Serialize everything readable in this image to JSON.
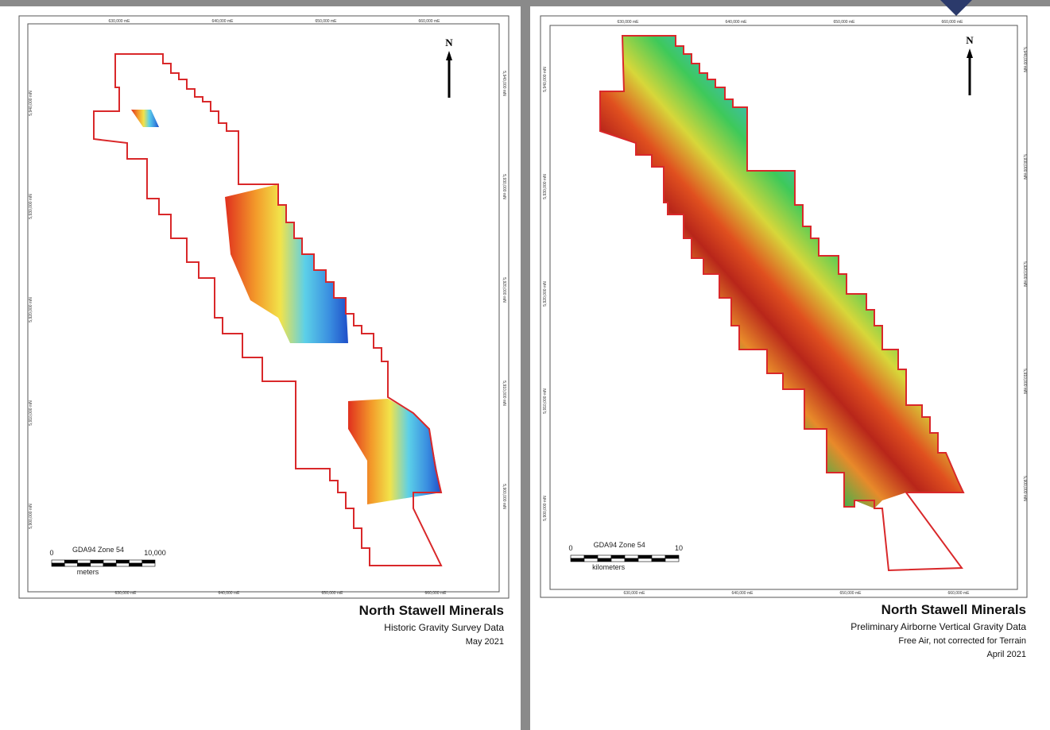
{
  "panels": [
    {
      "eastings": [
        "630,000 mE",
        "640,000 mE",
        "650,000 mE",
        "660,000 mE"
      ],
      "northings": [
        "5,940,000 mN",
        "5,930,000 mN",
        "5,920,000 mN",
        "5,910,000 mN",
        "5,900,000 mN"
      ],
      "north": "N",
      "scale": {
        "projection": "GDA94 Zone 54",
        "start": "0",
        "end": "10,000",
        "unit": "meters"
      },
      "title": "North Stawell Minerals",
      "subtitle": [
        "Historic Gravity Survey Data",
        "May 2021"
      ]
    },
    {
      "eastings": [
        "630,000 mE",
        "640,000 mE",
        "650,000 mE",
        "660,000 mE"
      ],
      "northings": [
        "5,940,000 mN",
        "5,930,000 mN",
        "5,920,000 mN",
        "5,910,000 mN",
        "5,900,000 mN"
      ],
      "north": "N",
      "scale": {
        "projection": "GDA94 Zone 54",
        "start": "0",
        "end": "10",
        "unit": "kilometers"
      },
      "title": "North Stawell Minerals",
      "subtitle": [
        "Preliminary Airborne Vertical Gravity Data",
        "Free Air, not corrected for Terrain",
        "April 2021"
      ]
    }
  ]
}
